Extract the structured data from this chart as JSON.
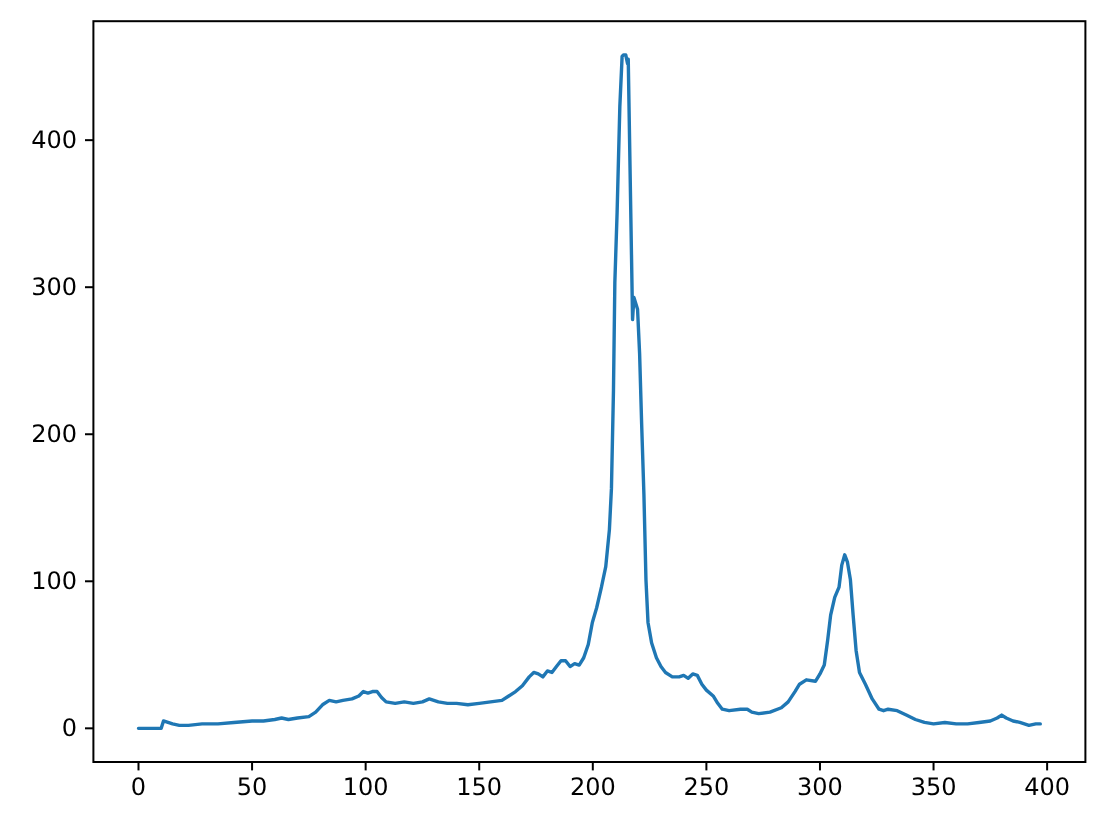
{
  "chart_data": {
    "type": "line",
    "color": "#1f77b4",
    "x": [
      0,
      10,
      11,
      13,
      15,
      18,
      22,
      28,
      35,
      42,
      50,
      55,
      60,
      63,
      66,
      70,
      75,
      78,
      81,
      84,
      87,
      90,
      94,
      97,
      99,
      101,
      103,
      105,
      107,
      109,
      113,
      117,
      121,
      125,
      128,
      132,
      136,
      140,
      145,
      150,
      155,
      160,
      163,
      166,
      169,
      172,
      174,
      176,
      178,
      180,
      182,
      184,
      186,
      188,
      190,
      192,
      194,
      196,
      198,
      199.8,
      201.7,
      203.8,
      204.2,
      205.7,
      207.3,
      208.2,
      209.1,
      209.7,
      210.7,
      211.9,
      212.9,
      213.5,
      214.5,
      215.3,
      215.6,
      217.5,
      218.1,
      219.7,
      220.6,
      221.5,
      222.5,
      223.4,
      224.3,
      225.9,
      228,
      230,
      232,
      235,
      238,
      240,
      242,
      244,
      246,
      248,
      250,
      253,
      255,
      257,
      260,
      265,
      268,
      270,
      273,
      278,
      283,
      286,
      289,
      291,
      294,
      298,
      300,
      301.9,
      303.4,
      304.7,
      306.5,
      308.4,
      309.6,
      310.9,
      312.1,
      313.4,
      314.6,
      315.9,
      317.4,
      320,
      323,
      326,
      328,
      330,
      334,
      338,
      342,
      346,
      350,
      355,
      360,
      365,
      370,
      375,
      378,
      380,
      382,
      385,
      388,
      392,
      395,
      397
    ],
    "values": [
      0,
      0,
      5,
      4,
      3,
      2,
      2,
      3,
      3,
      4,
      5,
      5,
      6,
      7,
      6,
      7,
      8,
      11,
      16,
      19,
      18,
      19,
      20,
      22,
      25,
      24,
      25,
      25,
      21,
      18,
      17,
      18,
      17,
      18,
      20,
      18,
      17,
      17,
      16,
      17,
      18,
      19,
      22,
      25,
      29,
      35,
      38,
      37,
      35,
      39,
      38,
      42,
      46,
      46,
      42,
      44,
      43,
      48,
      57,
      72,
      82,
      96,
      99,
      110,
      135,
      163,
      230,
      303,
      351,
      423,
      457,
      458,
      458,
      452,
      455,
      278,
      293,
      285,
      255,
      207,
      159,
      101,
      72,
      58,
      48,
      42,
      38,
      35,
      35,
      36,
      34,
      37,
      36,
      30,
      26,
      22,
      17,
      13,
      12,
      13,
      13,
      11,
      10,
      11,
      14,
      18,
      25,
      30,
      33,
      32,
      37,
      43,
      60,
      77,
      89,
      96,
      111,
      118,
      113,
      101,
      77,
      53,
      38,
      30,
      20,
      13,
      12,
      13,
      12,
      9,
      6,
      4,
      3,
      4,
      3,
      3,
      4,
      5,
      7,
      9,
      7,
      5,
      4,
      2,
      3,
      3
    ],
    "xlim": [
      -19.85,
      416.85
    ],
    "ylim": [
      -22.9,
      480.9
    ],
    "xticks": [
      0,
      50,
      100,
      150,
      200,
      250,
      300,
      350,
      400
    ],
    "yticks": [
      0,
      100,
      200,
      300,
      400
    ]
  }
}
